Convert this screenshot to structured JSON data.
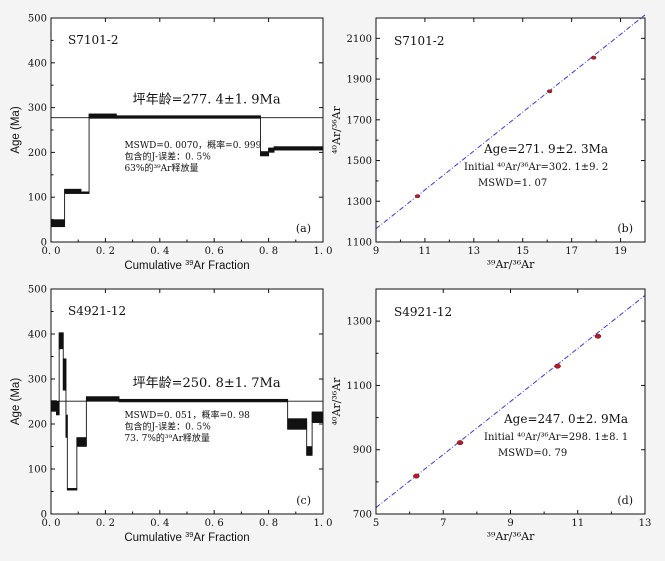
{
  "chart_data": [
    {
      "id": "a",
      "type": "age-spectrum",
      "panel_label": "(a)",
      "sample": "S7101-2",
      "xlabel_prefix": "Cumulative ",
      "xlabel_sup": "39",
      "xlabel_suffix": "Ar Fraction",
      "ylabel": "Age (Ma)",
      "xlim": [
        0,
        1
      ],
      "ylim": [
        0,
        500
      ],
      "xticks": [
        0,
        0.2,
        0.4,
        0.6,
        0.8,
        1.0
      ],
      "xtick_labels": [
        "0. 0",
        "0. 2",
        "0. 4",
        "0. 6",
        "0. 8",
        "1. 0"
      ],
      "yticks": [
        0,
        100,
        200,
        300,
        400,
        500
      ],
      "ytick_labels": [
        "0",
        "100",
        "200",
        "300",
        "400",
        "500"
      ],
      "plateau_age": 277.4,
      "plateau_text": "坪年龄=277. 4±1. 9Ma",
      "annotations": [
        "MSWD=0. 0070，概率=0. 999",
        "包含的J-误差：0. 5%",
        "63%的³⁹Ar释放量"
      ],
      "steps": [
        {
          "x0": 0.0,
          "x1": 0.05,
          "age": 42,
          "err": 8
        },
        {
          "x0": 0.05,
          "x1": 0.11,
          "age": 113,
          "err": 5
        },
        {
          "x0": 0.11,
          "x1": 0.14,
          "age": 110,
          "err": 2
        },
        {
          "x0": 0.14,
          "x1": 0.24,
          "age": 281,
          "err": 5
        },
        {
          "x0": 0.24,
          "x1": 0.77,
          "age": 279,
          "err": 3
        },
        {
          "x0": 0.77,
          "x1": 0.8,
          "age": 197,
          "err": 5
        },
        {
          "x0": 0.8,
          "x1": 0.82,
          "age": 205,
          "err": 5
        },
        {
          "x0": 0.82,
          "x1": 1.0,
          "age": 209,
          "err": 4
        }
      ]
    },
    {
      "id": "b",
      "type": "scatter",
      "panel_label": "(b)",
      "sample": "S7101-2",
      "xlabel": "³⁹Ar/³⁶Ar",
      "ylabel": "⁴⁰Ar/³⁶Ar",
      "xlim": [
        9,
        20
      ],
      "ylim": [
        1100,
        2200
      ],
      "xticks": [
        9,
        11,
        13,
        15,
        17,
        19
      ],
      "xtick_labels": [
        "9",
        "11",
        "13",
        "15",
        "17",
        "19"
      ],
      "yticks": [
        1100,
        1300,
        1500,
        1700,
        1900,
        2100
      ],
      "ytick_labels": [
        "1100",
        "1300",
        "1500",
        "1700",
        "1900",
        "2100"
      ],
      "points": [
        {
          "x": 10.7,
          "y": 1325
        },
        {
          "x": 16.1,
          "y": 1840
        },
        {
          "x": 17.9,
          "y": 2005
        }
      ],
      "line": {
        "x0": 9,
        "y0": 1165,
        "x1": 20,
        "y1": 2215
      },
      "annotations": [
        "Age=271. 9±2. 3Ma",
        "Initial ⁴⁰Ar/³⁶Ar=302. 1±9. 2",
        "MSWD=1. 07"
      ]
    },
    {
      "id": "c",
      "type": "age-spectrum",
      "panel_label": "(c)",
      "sample": "S4921-12",
      "xlabel_prefix": "Cumulative ",
      "xlabel_sup": "39",
      "xlabel_suffix": "Ar Fraction",
      "ylabel": "Age (Ma)",
      "xlim": [
        0,
        1
      ],
      "ylim": [
        0,
        500
      ],
      "xticks": [
        0,
        0.2,
        0.4,
        0.6,
        0.8,
        1.0
      ],
      "xtick_labels": [
        "0. 0",
        "0. 2",
        "0. 4",
        "0. 6",
        "0. 8",
        "1. 0"
      ],
      "yticks": [
        0,
        100,
        200,
        300,
        400,
        500
      ],
      "ytick_labels": [
        "0",
        "100",
        "200",
        "300",
        "400",
        "500"
      ],
      "plateau_age": 250.8,
      "plateau_text": "坪年龄=250. 8±1. 7Ma",
      "annotations": [
        "MSWD=0. 051，概率=0. 98",
        "包含的J-误差：0. 5%",
        "73. 7%的³⁹Ar释放量"
      ],
      "steps": [
        {
          "x0": 0.0,
          "x1": 0.02,
          "age": 240,
          "err": 12
        },
        {
          "x0": 0.02,
          "x1": 0.03,
          "age": 235,
          "err": 15
        },
        {
          "x0": 0.03,
          "x1": 0.045,
          "age": 385,
          "err": 18
        },
        {
          "x0": 0.045,
          "x1": 0.055,
          "age": 310,
          "err": 35
        },
        {
          "x0": 0.055,
          "x1": 0.06,
          "age": 195,
          "err": 25
        },
        {
          "x0": 0.06,
          "x1": 0.095,
          "age": 55,
          "err": 2
        },
        {
          "x0": 0.095,
          "x1": 0.13,
          "age": 160,
          "err": 10
        },
        {
          "x0": 0.13,
          "x1": 0.25,
          "age": 256,
          "err": 5
        },
        {
          "x0": 0.25,
          "x1": 0.87,
          "age": 252,
          "err": 3
        },
        {
          "x0": 0.87,
          "x1": 0.94,
          "age": 200,
          "err": 12
        },
        {
          "x0": 0.94,
          "x1": 0.96,
          "age": 140,
          "err": 10
        },
        {
          "x0": 0.96,
          "x1": 1.0,
          "age": 215,
          "err": 12
        }
      ]
    },
    {
      "id": "d",
      "type": "scatter",
      "panel_label": "(d)",
      "sample": "S4921-12",
      "xlabel": "³⁹Ar/³⁶Ar",
      "ylabel": "⁴⁰Ar/³⁶Ar",
      "xlim": [
        5,
        13
      ],
      "ylim": [
        700,
        1400
      ],
      "xticks": [
        5,
        7,
        9,
        11,
        13
      ],
      "xtick_labels": [
        "5",
        "7",
        "9",
        "11",
        "13"
      ],
      "yticks": [
        700,
        900,
        1100,
        1300
      ],
      "ytick_labels": [
        "700",
        "900",
        "1100",
        "1300"
      ],
      "points": [
        {
          "x": 6.2,
          "y": 818
        },
        {
          "x": 7.5,
          "y": 922
        },
        {
          "x": 10.4,
          "y": 1160
        },
        {
          "x": 11.6,
          "y": 1253
        }
      ],
      "line": {
        "x0": 5,
        "y0": 720,
        "x1": 13,
        "y1": 1380
      },
      "annotations": [
        "Age=247. 0±2. 9Ma",
        "Initial ⁴⁰Ar/³⁶Ar=298. 1±8. 1",
        "MSWD=0. 79"
      ]
    }
  ]
}
